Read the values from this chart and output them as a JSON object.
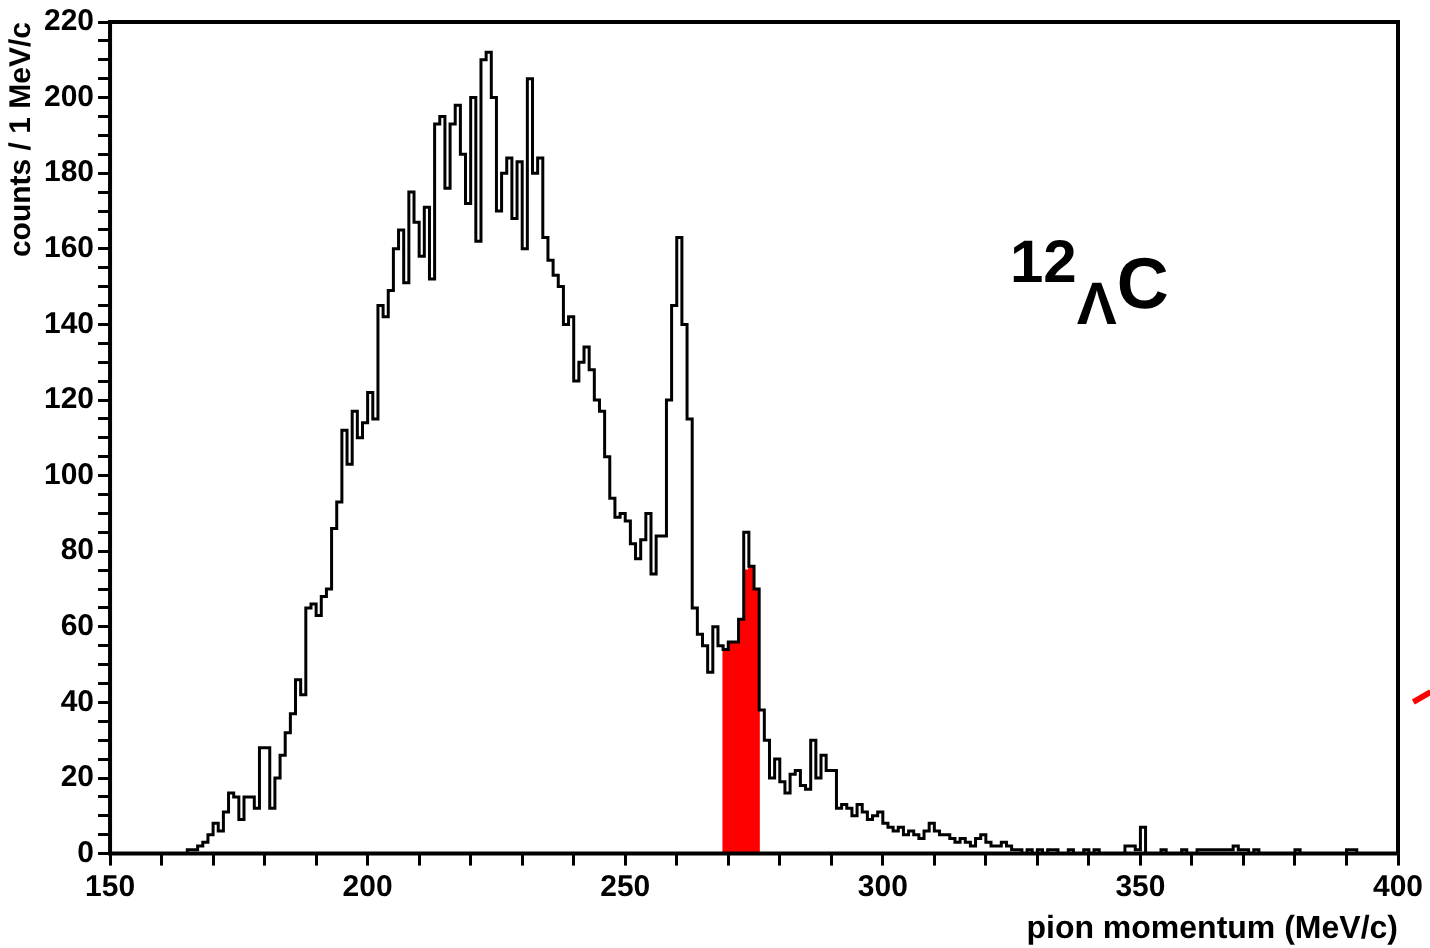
{
  "chart_data": {
    "type": "histogram",
    "xlabel": "pion momentum (MeV/c)",
    "ylabel": "counts / 1 MeV/c",
    "annotations": [
      "$^{12}$$_{Λ}$C"
    ],
    "bins": [
      150,
      151,
      152,
      153,
      154,
      155,
      156,
      157,
      158,
      159,
      160,
      161,
      162,
      163,
      164,
      165,
      166,
      167,
      168,
      169,
      170,
      171,
      172,
      173,
      174,
      175,
      176,
      177,
      178,
      179,
      180,
      181,
      182,
      183,
      184,
      185,
      186,
      187,
      188,
      189,
      190,
      191,
      192,
      193,
      194,
      195,
      196,
      197,
      198,
      199,
      200,
      201,
      202,
      203,
      204,
      205,
      206,
      207,
      208,
      209,
      210,
      211,
      212,
      213,
      214,
      215,
      216,
      217,
      218,
      219,
      220,
      221,
      222,
      223,
      224,
      225,
      226,
      227,
      228,
      229,
      230,
      231,
      232,
      233,
      234,
      235,
      236,
      237,
      238,
      239,
      240,
      241,
      242,
      243,
      244,
      245,
      246,
      247,
      248,
      249,
      250,
      251,
      252,
      253,
      254,
      255,
      256,
      257,
      258,
      259,
      260,
      261,
      262,
      263,
      264,
      265,
      266,
      267,
      268,
      269,
      270,
      271,
      272,
      273,
      274,
      275,
      276,
      277,
      278,
      279,
      280,
      281,
      282,
      283,
      284,
      285,
      286,
      287,
      288,
      289,
      290,
      291,
      292,
      293,
      294,
      295,
      296,
      297,
      298,
      299,
      300,
      301,
      302,
      303,
      304,
      305,
      306,
      307,
      308,
      309,
      310,
      311,
      312,
      313,
      314,
      315,
      316,
      317,
      318,
      319,
      320,
      321,
      322,
      323,
      324,
      325,
      326,
      327,
      328,
      329,
      330,
      331,
      332,
      333,
      334,
      335,
      336,
      337,
      338,
      339,
      340,
      341,
      342,
      343,
      344,
      345,
      346,
      347,
      348,
      349,
      350,
      351,
      352,
      353,
      354,
      355,
      356,
      357,
      358,
      359,
      360,
      361,
      362,
      363,
      364,
      365,
      366,
      367,
      368,
      369,
      370,
      371,
      372,
      373,
      374,
      375,
      376,
      377,
      378,
      379,
      380,
      381,
      382,
      383,
      384,
      385,
      386,
      387,
      388,
      389,
      390,
      391,
      392,
      393,
      394,
      395,
      396,
      397,
      398,
      399,
      400
    ],
    "series": [
      {
        "type": "histogram",
        "color": "#000000",
        "values": [
          0,
          0,
          0,
          0,
          0,
          0,
          0,
          0,
          0,
          0,
          0,
          0,
          0,
          0,
          0,
          1,
          1,
          2,
          3,
          5,
          8,
          6,
          11,
          16,
          15,
          9,
          15,
          15,
          12,
          28,
          28,
          12,
          20,
          26,
          32,
          37,
          46,
          42,
          65,
          66,
          63,
          68,
          70,
          86,
          93,
          112,
          103,
          117,
          110,
          114,
          122,
          115,
          145,
          142,
          149,
          160,
          165,
          151,
          175,
          167,
          158,
          171,
          152,
          193,
          195,
          176,
          193,
          198,
          185,
          172,
          200,
          162,
          210,
          212,
          200,
          170,
          180,
          184,
          168,
          183,
          160,
          205,
          180,
          184,
          163,
          157,
          153,
          150,
          140,
          142,
          125,
          130,
          134,
          128,
          120,
          117,
          105,
          94,
          89,
          90,
          88,
          82,
          78,
          83,
          90,
          74,
          84,
          84,
          120,
          145,
          163,
          140,
          115,
          65,
          58,
          55,
          48,
          60,
          55,
          54,
          56,
          56,
          62,
          85,
          76,
          70,
          38,
          30,
          20,
          25,
          19,
          16,
          21,
          22,
          18,
          17,
          30,
          20,
          26,
          22,
          22,
          12,
          13,
          12,
          10,
          13,
          11,
          9,
          10,
          11,
          8,
          7,
          6,
          7,
          5,
          6,
          5,
          4,
          6,
          8,
          6,
          5,
          5,
          4,
          3,
          4,
          3,
          2,
          4,
          5,
          3,
          2,
          2,
          3,
          2,
          1,
          1,
          0,
          1,
          0,
          1,
          0,
          1,
          1,
          0,
          0,
          1,
          0,
          0,
          1,
          0,
          1,
          0,
          0,
          0,
          0,
          0,
          2,
          2,
          1,
          7,
          0,
          0,
          0,
          1,
          0,
          0,
          0,
          1,
          0,
          0,
          1,
          1,
          1,
          1,
          1,
          1,
          1,
          2,
          1,
          1,
          0,
          1,
          0,
          0,
          0,
          0,
          0,
          0,
          0,
          1,
          0,
          0,
          0,
          0,
          0,
          0,
          0,
          0,
          0,
          1,
          1,
          0,
          0,
          0,
          0,
          0,
          0,
          0,
          0
        ]
      },
      {
        "type": "bar",
        "color": "#ff0000",
        "x": [
          269.5,
          270.5,
          271.5,
          272.5,
          273.5,
          274.5,
          275.5
        ],
        "values": [
          54,
          56,
          56,
          62,
          75,
          76,
          70
        ]
      }
    ],
    "xlim": [
      150,
      400
    ],
    "xticks": [
      150,
      {
        "value": 160,
        "label": null
      },
      {
        "value": 170,
        "label": null
      },
      {
        "value": 180,
        "label": null
      },
      {
        "value": 190,
        "label": null
      },
      200,
      {
        "value": 210,
        "label": null
      },
      {
        "value": 220,
        "label": null
      },
      {
        "value": 230,
        "label": null
      },
      {
        "value": 240,
        "label": null
      },
      250,
      {
        "value": 260,
        "label": null
      },
      {
        "value": 270,
        "label": null
      },
      {
        "value": 280,
        "label": null
      },
      {
        "value": 290,
        "label": null
      },
      300,
      {
        "value": 310,
        "label": null
      },
      {
        "value": 320,
        "label": null
      },
      {
        "value": 330,
        "label": null
      },
      {
        "value": 340,
        "label": null
      },
      350,
      {
        "value": 360,
        "label": null
      },
      {
        "value": 370,
        "label": null
      },
      {
        "value": 380,
        "label": null
      },
      {
        "value": 390,
        "label": null
      },
      400
    ],
    "ylim": [
      0,
      220
    ],
    "yticks": [
      0,
      {
        "value": 5,
        "label": null
      },
      {
        "value": 10,
        "label": null
      },
      {
        "value": 15,
        "label": null
      },
      20,
      {
        "value": 25,
        "label": null
      },
      {
        "value": 30,
        "label": null
      },
      {
        "value": 35,
        "label": null
      },
      40,
      {
        "value": 45,
        "label": null
      },
      {
        "value": 50,
        "label": null
      },
      {
        "value": 55,
        "label": null
      },
      60,
      {
        "value": 65,
        "label": null
      },
      {
        "value": 70,
        "label": null
      },
      {
        "value": 75,
        "label": null
      },
      80,
      {
        "value": 85,
        "label": null
      },
      {
        "value": 90,
        "label": null
      },
      {
        "value": 95,
        "label": null
      },
      100,
      {
        "value": 105,
        "label": null
      },
      {
        "value": 110,
        "label": null
      },
      {
        "value": 115,
        "label": null
      },
      120,
      {
        "value": 125,
        "label": null
      },
      {
        "value": 130,
        "label": null
      },
      {
        "value": 135,
        "label": null
      },
      140,
      {
        "value": 145,
        "label": null
      },
      {
        "value": 150,
        "label": null
      },
      {
        "value": 155,
        "label": null
      },
      160,
      {
        "value": 165,
        "label": null
      },
      {
        "value": 170,
        "label": null
      },
      {
        "value": 175,
        "label": null
      },
      180,
      {
        "value": 185,
        "label": null
      },
      {
        "value": 190,
        "label": null
      },
      {
        "value": 195,
        "label": null
      },
      200,
      {
        "value": 205,
        "label": null
      },
      {
        "value": 210,
        "label": null
      },
      {
        "value": 215,
        "label": null
      },
      220
    ]
  }
}
